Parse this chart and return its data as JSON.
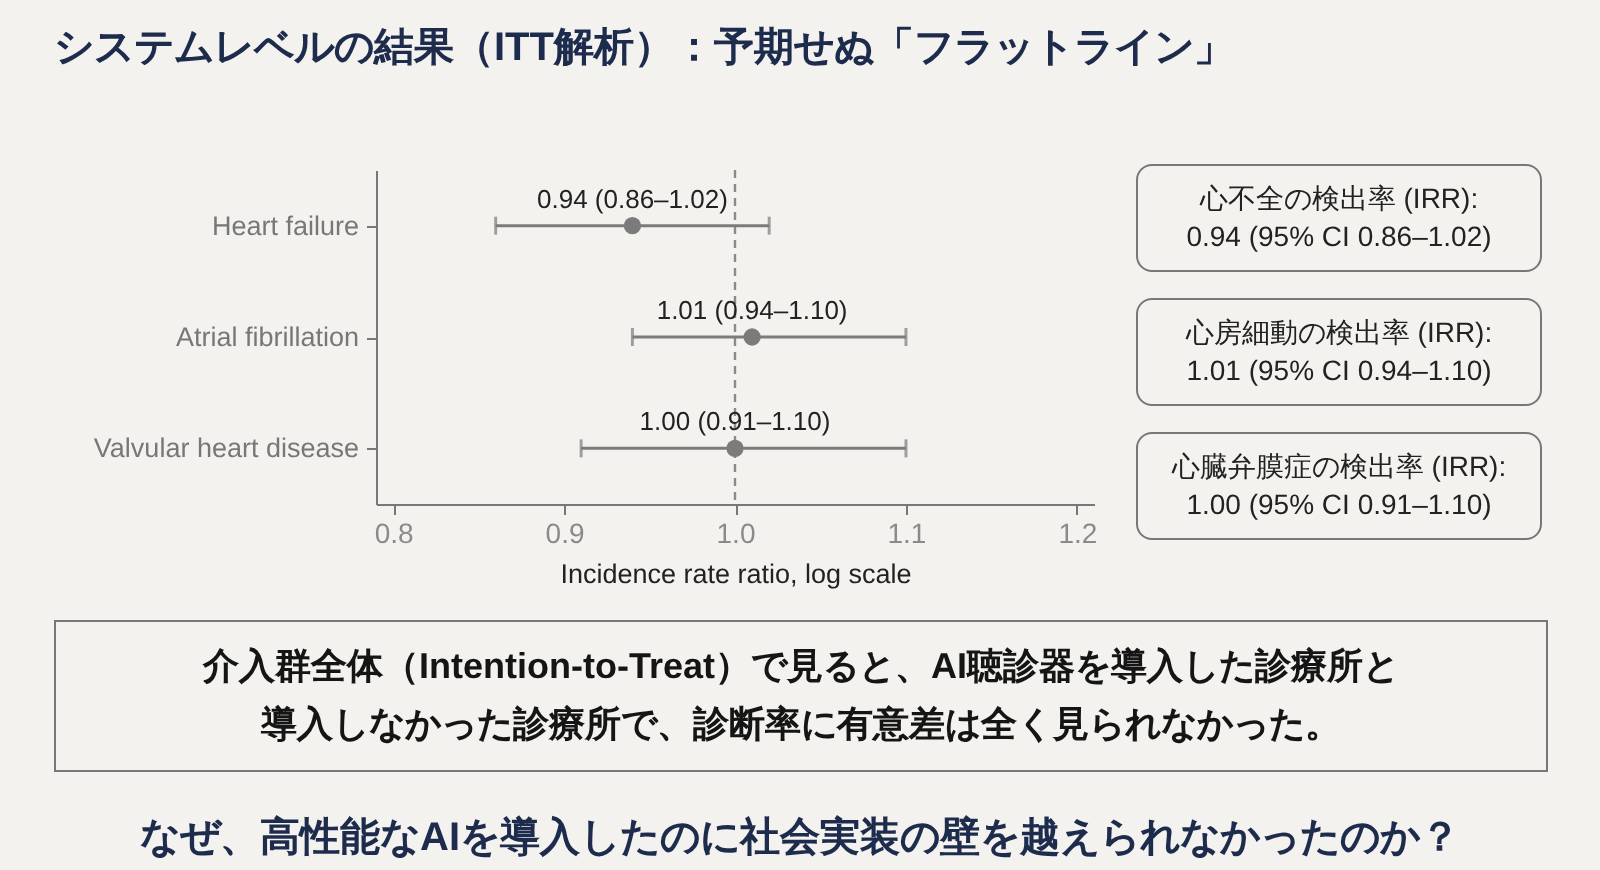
{
  "chart_data": {
    "type": "scatter",
    "title": "システムレベルの結果（ITT解析）：予期せぬ「フラットライン」",
    "xlabel": "Incidence rate ratio, log scale",
    "categories": [
      "Heart failure",
      "Atrial fibrillation",
      "Valvular heart disease"
    ],
    "orientation": "horizontal",
    "values": [
      0.94,
      1.01,
      1.0
    ],
    "color": "#7b7b7b",
    "errors": [
      [
        0.86,
        1.02
      ],
      [
        0.94,
        1.1
      ],
      [
        0.91,
        1.1
      ]
    ],
    "value_labels": [
      "0.94 (0.86–1.02)",
      "1.01 (0.94–1.10)",
      "1.00 (0.91–1.10)"
    ],
    "xlim": [
      0.79,
      1.21
    ],
    "xticks": [
      0.8,
      0.9,
      {
        "value": 1,
        "label": "1.0"
      },
      1.1,
      1.2
    ],
    "ref_lines": [
      {
        "axis": "x",
        "value": 1,
        "line_style": "dashed",
        "color": "#8a8a8a"
      }
    ],
    "marker": "circle",
    "annotations": [
      "心不全の検出率 (IRR):\n0.94 (95% CI 0.86–1.02)",
      "心房細動の検出率 (IRR):\n1.01 (95% CI 0.94–1.10)",
      "心臓弁膜症の検出率 (IRR):\n1.00 (95% CI 0.91–1.10)",
      "介入群全体（Intention-to-Treat）で見ると、AI聴診器を導入した診療所と導入しなかった診療所で、診断率に有意差は全く見られなかった。",
      "なぜ、高性能なAIを導入したのに社会実装の壁を越えられなかったのか？"
    ]
  }
}
